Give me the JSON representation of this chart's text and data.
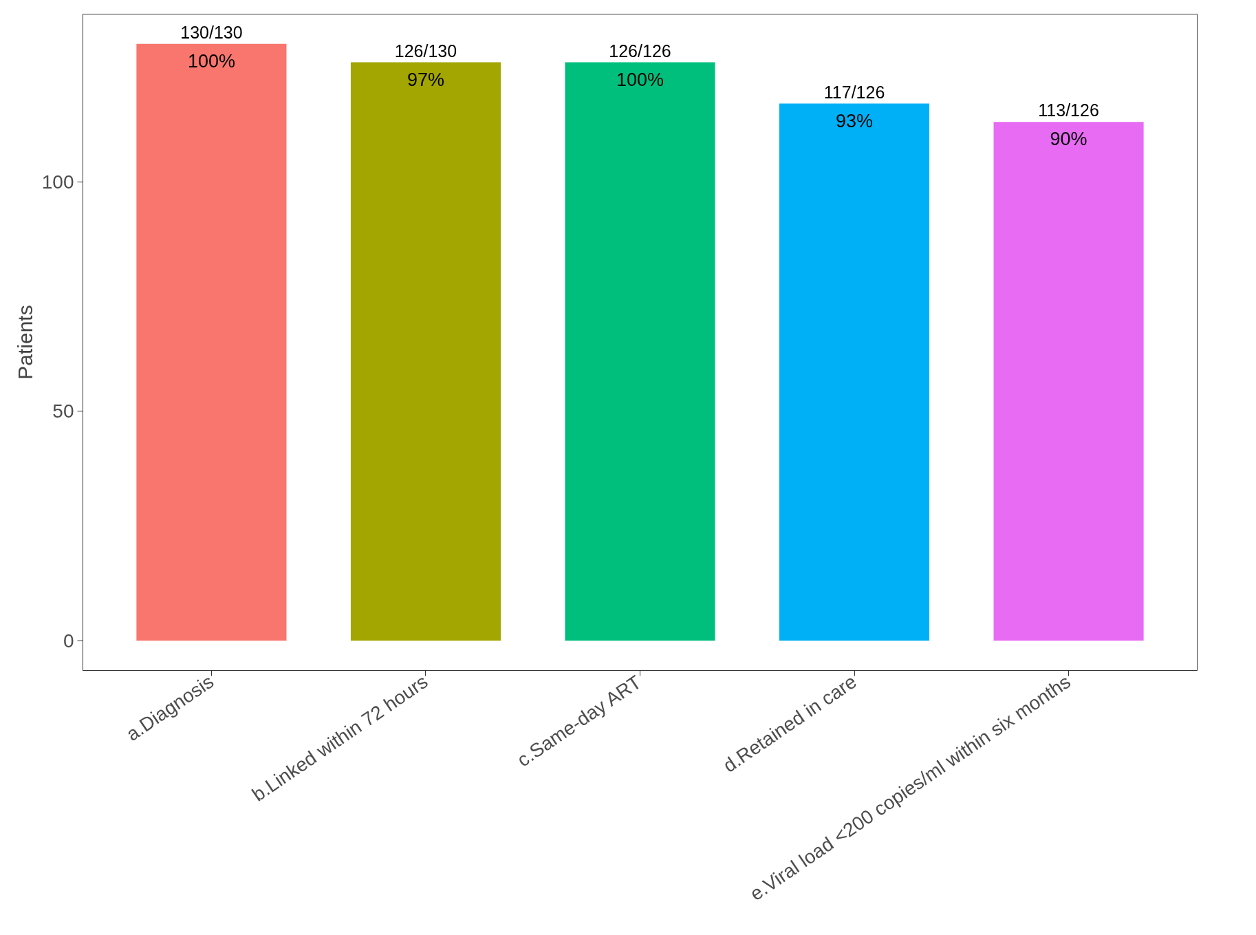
{
  "chart_data": {
    "type": "bar",
    "ylabel": "Patients",
    "categories": [
      "a.Diagnosis",
      "b.Linked within 72 hours",
      "c.Same-day ART",
      "d.Retained in care",
      "e.Viral load <200 copies/ml within six months"
    ],
    "values": [
      130,
      126,
      126,
      117,
      113
    ],
    "colors": [
      "#f8766d",
      "#a3a500",
      "#00bf7d",
      "#00b0f6",
      "#e76bf3"
    ],
    "value_labels": [
      "130/130",
      "126/130",
      "126/126",
      "117/126",
      "113/126"
    ],
    "annotations": [
      {
        "text": "100%",
        "x": "a.Diagnosis",
        "y": 130
      },
      {
        "text": "97%",
        "x": "b.Linked within 72 hours",
        "y": 126
      },
      {
        "text": "100%",
        "x": "c.Same-day ART",
        "y": 126
      },
      {
        "text": "93%",
        "x": "d.Retained in care",
        "y": 117
      },
      {
        "text": "90%",
        "x": "e.Viral load <200 copies/ml within six months",
        "y": 113
      }
    ],
    "ylim": [
      -6.5,
      136.5
    ],
    "yticks": [
      0,
      50,
      100
    ],
    "grid": false
  }
}
